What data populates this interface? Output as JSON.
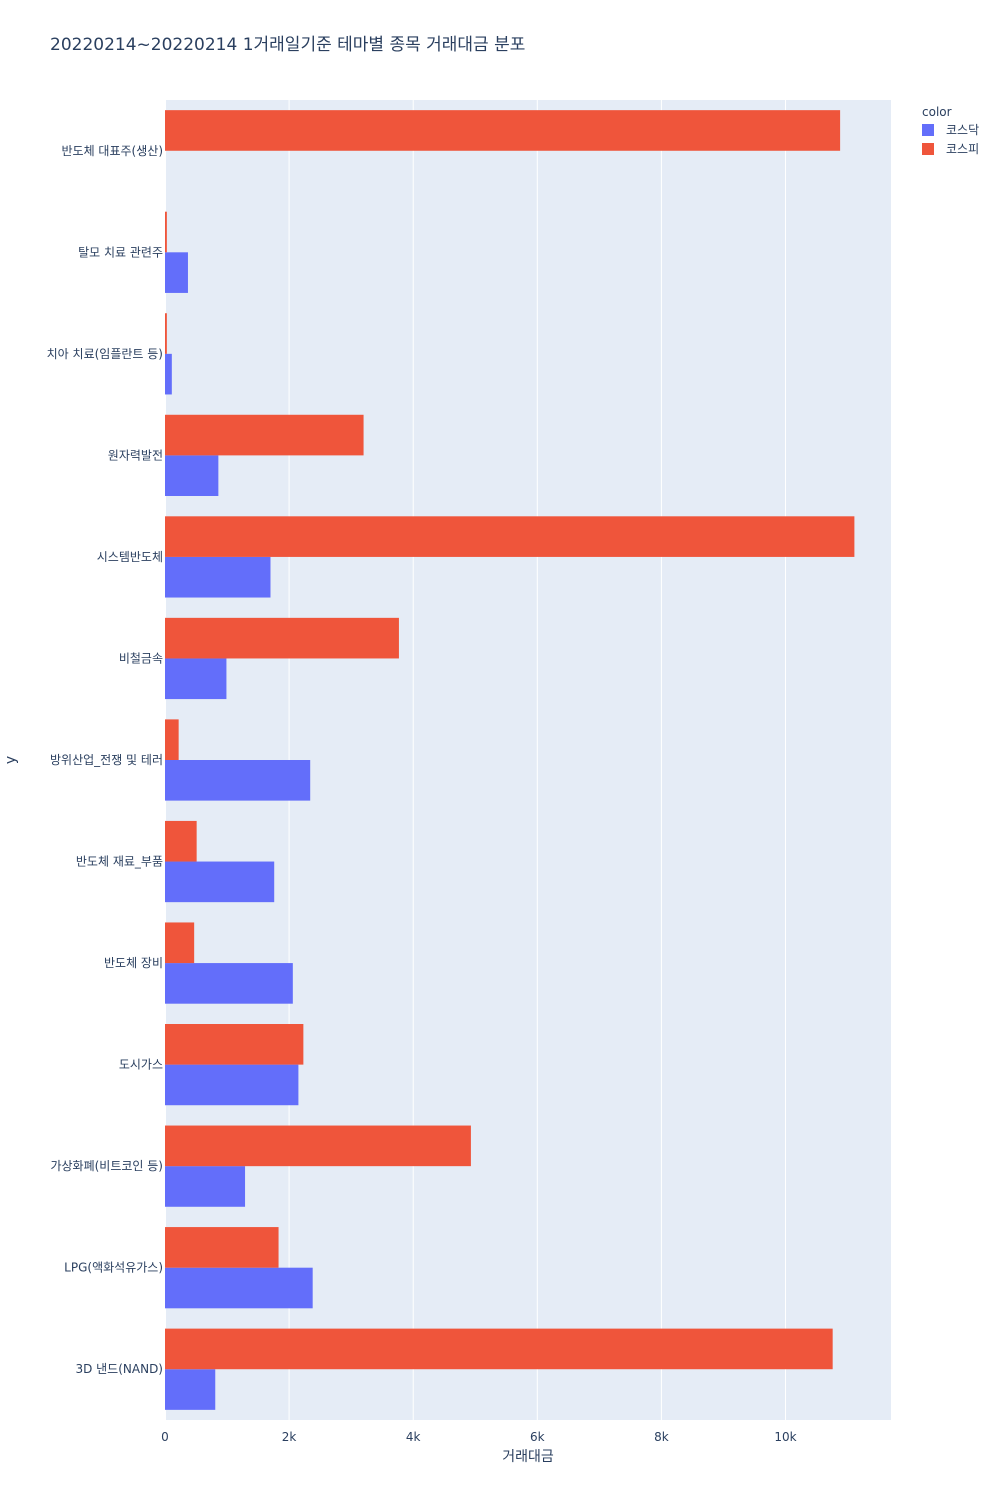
{
  "chart_data": {
    "type": "bar",
    "orientation": "horizontal",
    "barmode": "group",
    "title": "20220214~20220214 1거래일기준 테마별 종목 거래대금 분포",
    "xlabel": "거래대금",
    "ylabel": "y",
    "xlim": [
      0,
      11700
    ],
    "x_ticks": [
      {
        "value": 0,
        "label": "0"
      },
      {
        "value": 2000,
        "label": "2k"
      },
      {
        "value": 4000,
        "label": "4k"
      },
      {
        "value": 6000,
        "label": "6k"
      },
      {
        "value": 8000,
        "label": "8k"
      },
      {
        "value": 10000,
        "label": "10k"
      }
    ],
    "grid": true,
    "legend_title": "color",
    "legend_position": "top-right",
    "categories": [
      "반도체 대표주(생산)",
      "탈모 치료 관련주",
      "치아 치료(임플란트 등)",
      "원자력발전",
      "시스템반도체",
      "비철금속",
      "방위산업_전쟁 및 테러",
      "반도체 재료_부품",
      "반도체 장비",
      "도시가스",
      "가상화폐(비트코인 등)",
      "LPG(액화석유가스)",
      "3D 낸드(NAND)"
    ],
    "series": [
      {
        "name": "코스닥",
        "color": "#636efa",
        "values": [
          0,
          370,
          110,
          860,
          1700,
          990,
          2340,
          1760,
          2060,
          2150,
          1290,
          2380,
          810
        ]
      },
      {
        "name": "코스피",
        "color": "#ef553b",
        "values": [
          10880,
          30,
          30,
          3200,
          11110,
          3770,
          220,
          510,
          470,
          2230,
          4930,
          1830,
          10760
        ]
      }
    ]
  }
}
